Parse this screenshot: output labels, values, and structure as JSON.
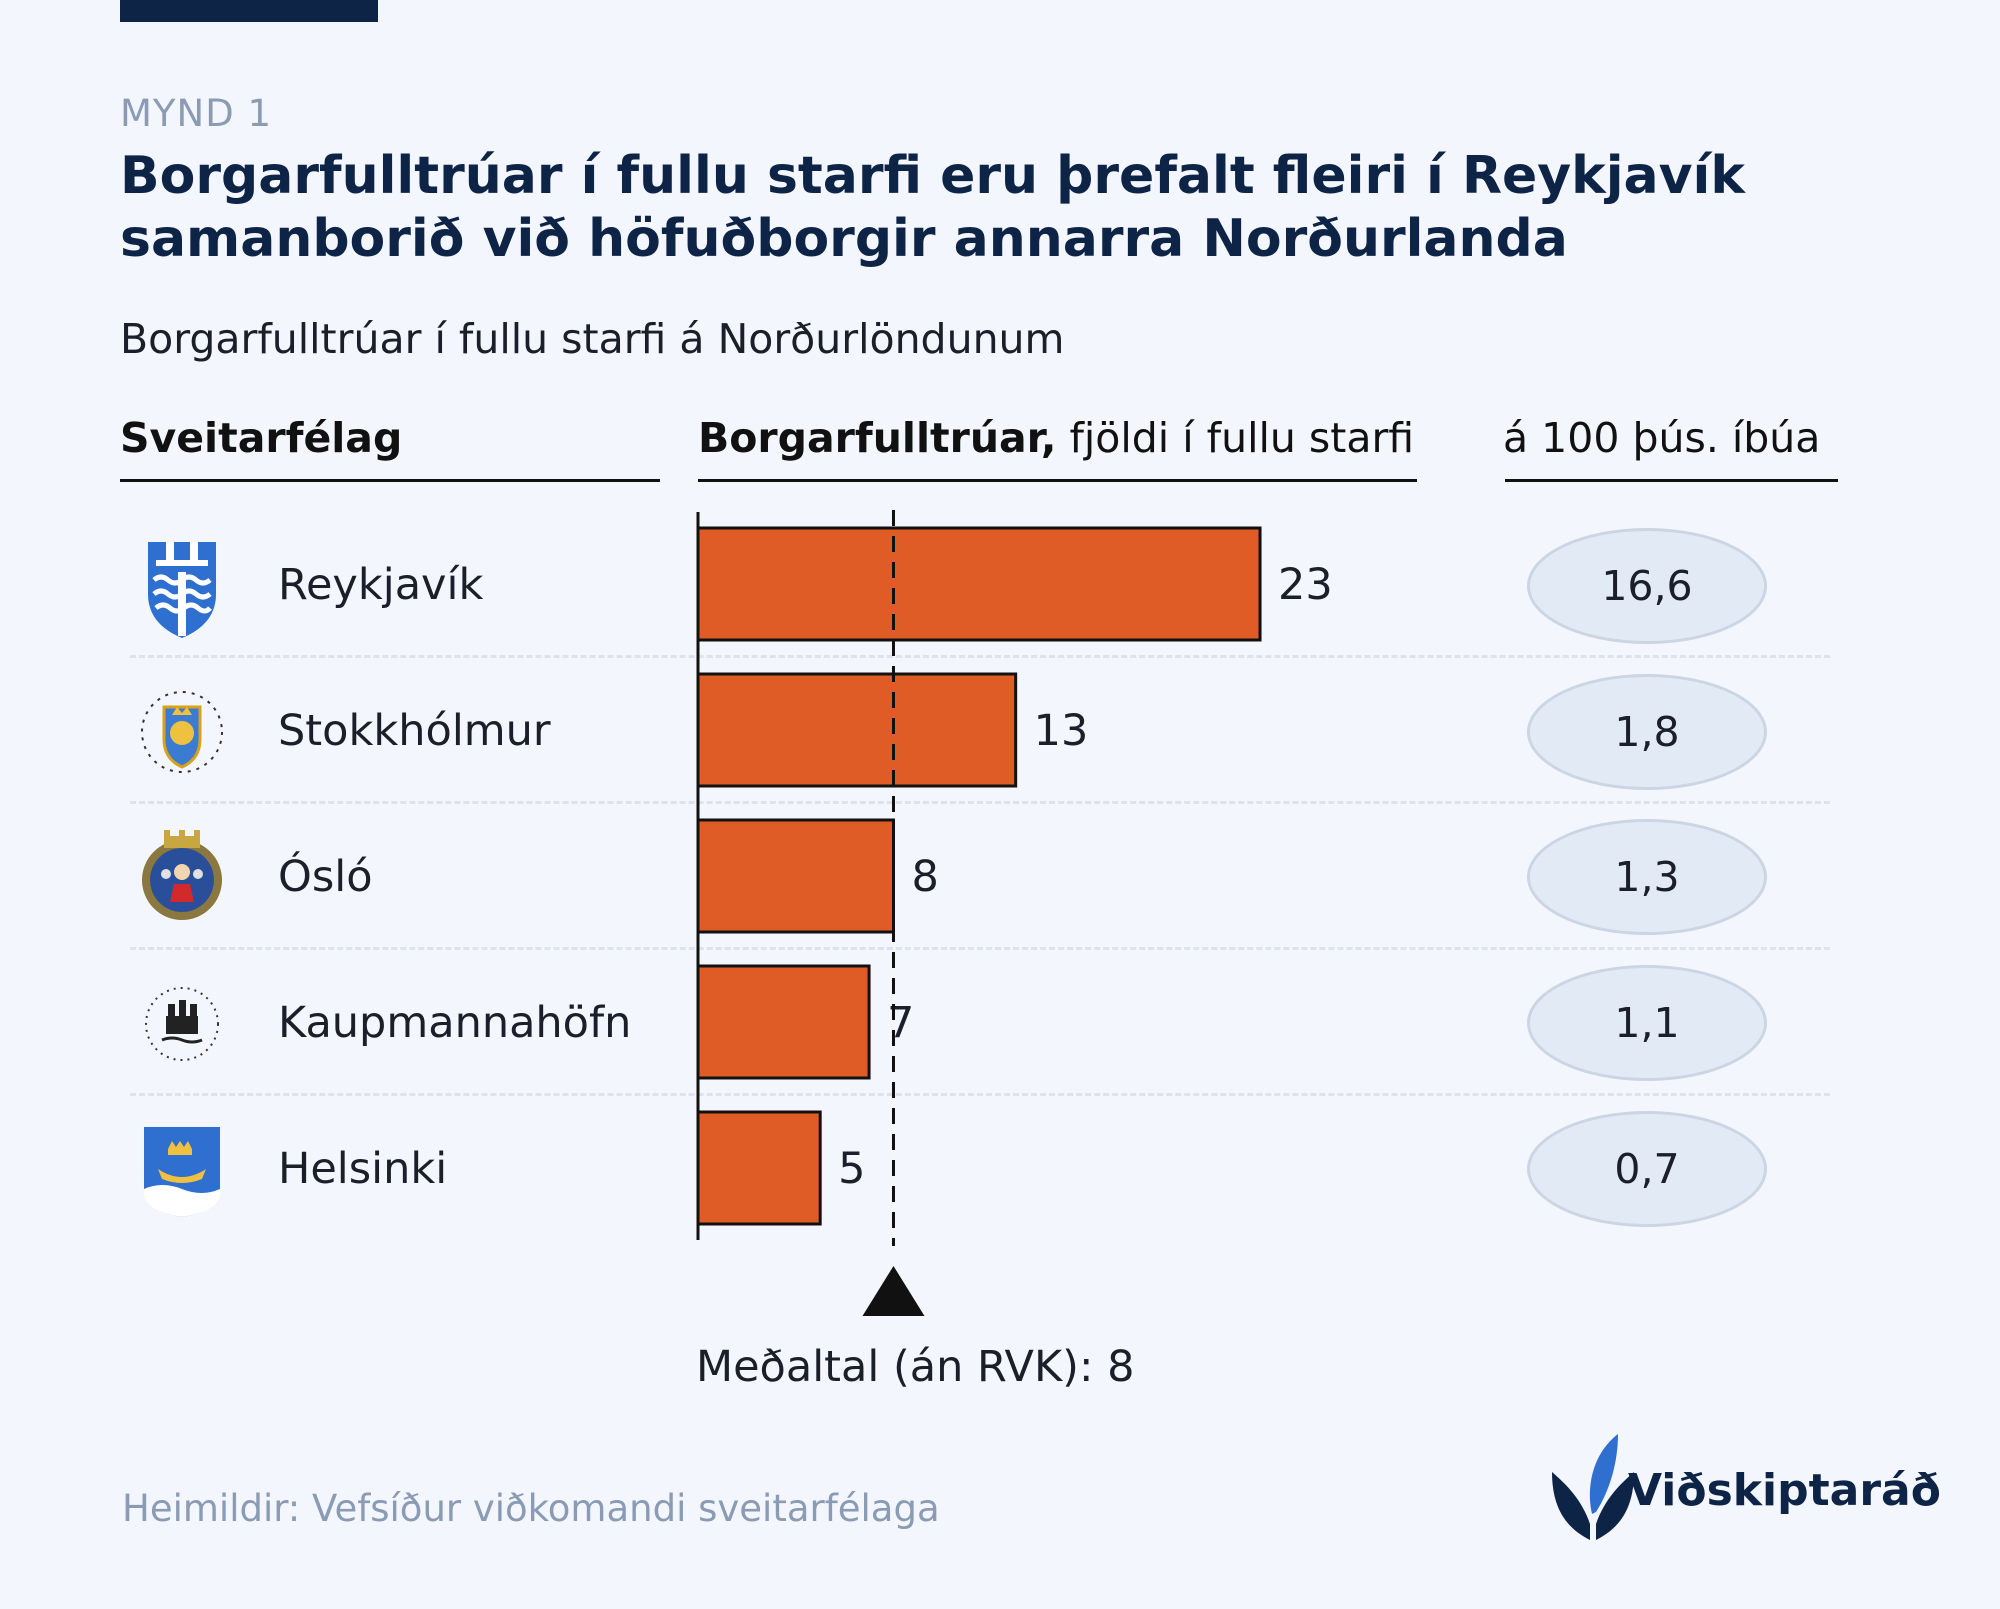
{
  "header": {
    "kicker": "MYND 1",
    "title": "Borgarfulltrúar í fullu starfi eru þrefalt fleiri í Reykjavík samanborið við höfuðborgir annarra Norðurlanda",
    "subtitle": "Borgarfulltrúar í fullu starfi á Norðurlöndunum"
  },
  "columns": {
    "municipality": "Sveitarfélag",
    "count_bold": "Borgarfulltrúar,",
    "count_rest": " fjöldi í fullu starfi",
    "per_capita": "á 100 þús. íbúa"
  },
  "chart_data": {
    "type": "bar",
    "orientation": "horizontal",
    "categories": [
      "Reykjavík",
      "Stokkhólmur",
      "Ósló",
      "Kaupmannahöfn",
      "Helsinki"
    ],
    "values": [
      23,
      13,
      8,
      7,
      5
    ],
    "per_100k": [
      "16,6",
      "1,8",
      "1,3",
      "1,1",
      "0,7"
    ],
    "reference_line": {
      "value": 8,
      "label": "Meðaltal (án RVK): 8"
    },
    "bar_color": "#e05c27",
    "xlim": [
      0,
      27.5
    ]
  },
  "logos": [
    "reykjavik-crest-icon",
    "stockholm-seal-icon",
    "oslo-seal-icon",
    "copenhagen-seal-icon",
    "helsinki-crest-icon"
  ],
  "footer": {
    "source": "Heimildir: Vefsíður viðkomandi sveitarfélaga",
    "brand": "Viðskiptaráð"
  }
}
